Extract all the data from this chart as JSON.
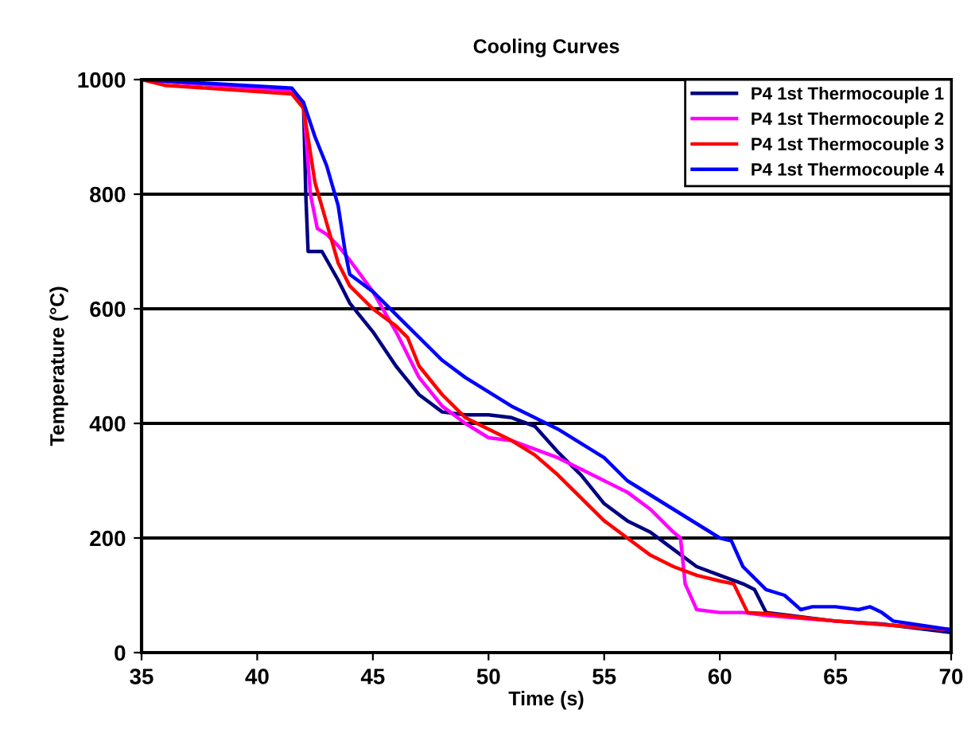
{
  "chart_data": {
    "type": "line",
    "title": "Cooling Curves",
    "xlabel": "Time (s)",
    "ylabel": "Temperature (°C)",
    "xlim": [
      35,
      70
    ],
    "xticks": [
      35,
      40,
      45,
      50,
      55,
      60,
      65,
      70
    ],
    "ylim": [
      0,
      1000
    ],
    "yticks": [
      0,
      200,
      400,
      600,
      800,
      1000
    ],
    "grid": "y",
    "legend": "top right",
    "marker": "none",
    "line_style": "solid",
    "series": [
      {
        "name": "P4 1st Thermocouple 1",
        "color": "#000080",
        "x": [
          35,
          41.5,
          42,
          42.1,
          42.2,
          42.8,
          43.5,
          44,
          45,
          46,
          47,
          48,
          49,
          50,
          51,
          52,
          53,
          54,
          55,
          56,
          57,
          58,
          59,
          60,
          61,
          61.5,
          62,
          63,
          65,
          67,
          70
        ],
        "values": [
          1000,
          980,
          960,
          800,
          700,
          700,
          650,
          610,
          560,
          500,
          450,
          420,
          415,
          415,
          410,
          395,
          350,
          310,
          260,
          230,
          210,
          180,
          150,
          135,
          120,
          110,
          70,
          65,
          55,
          50,
          35
        ]
      },
      {
        "name": "P4 1st Thermocouple 2",
        "color": "#ff00ff",
        "x": [
          35,
          41.5,
          42,
          42.3,
          42.6,
          43,
          43.5,
          44,
          45,
          46,
          47,
          48,
          49,
          50,
          51,
          52,
          53,
          54,
          55,
          56,
          57,
          58,
          58.3,
          58.5,
          59,
          60,
          61,
          62,
          65,
          70
        ],
        "values": [
          1000,
          980,
          960,
          800,
          740,
          730,
          710,
          685,
          630,
          560,
          480,
          430,
          400,
          375,
          370,
          355,
          340,
          320,
          300,
          280,
          250,
          210,
          200,
          120,
          75,
          70,
          70,
          65,
          55,
          40
        ]
      },
      {
        "name": "P4 1st Thermocouple 3",
        "color": "#ff0000",
        "x": [
          35,
          36,
          41.5,
          42,
          42.5,
          43,
          43.5,
          44,
          45,
          46,
          46.5,
          47,
          48,
          49,
          50,
          51,
          52,
          53,
          54,
          55,
          56,
          57,
          58,
          59,
          60,
          60.6,
          61.2,
          62,
          65,
          70
        ],
        "values": [
          1000,
          990,
          975,
          950,
          820,
          750,
          680,
          640,
          600,
          570,
          550,
          500,
          450,
          410,
          390,
          370,
          345,
          310,
          270,
          230,
          200,
          170,
          150,
          135,
          125,
          120,
          70,
          68,
          55,
          40
        ]
      },
      {
        "name": "P4 1st Thermocouple 4",
        "color": "#0000ff",
        "x": [
          35,
          41.5,
          42,
          42.5,
          43,
          43.5,
          43.8,
          44,
          45,
          46,
          47,
          48,
          49,
          50,
          51,
          52,
          53,
          54,
          55,
          56,
          57,
          58,
          59,
          60,
          60.5,
          61,
          62,
          62.8,
          63.5,
          64,
          65,
          66,
          66.5,
          67,
          67.5,
          70
        ],
        "values": [
          1000,
          985,
          960,
          900,
          850,
          780,
          700,
          660,
          630,
          590,
          550,
          510,
          480,
          455,
          430,
          410,
          390,
          365,
          340,
          300,
          275,
          250,
          225,
          200,
          195,
          150,
          110,
          100,
          75,
          80,
          80,
          75,
          80,
          70,
          55,
          40
        ]
      }
    ]
  }
}
